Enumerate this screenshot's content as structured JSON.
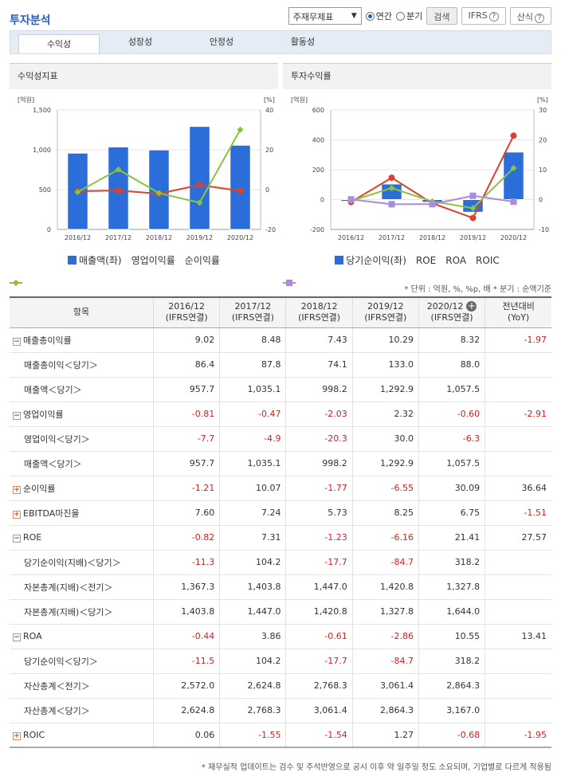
{
  "page": {
    "title": "투자분석"
  },
  "controls": {
    "select_value": "주재무제표",
    "annual": "연간",
    "quarter": "분기",
    "search": "검색",
    "ifrs": "IFRS",
    "formula": "산식"
  },
  "tabs": [
    "수익성",
    "성장성",
    "안정성",
    "활동성"
  ],
  "chart_data": [
    {
      "type": "bar",
      "title": "수익성지표",
      "categories": [
        "2016/12",
        "2017/12",
        "2018/12",
        "2019/12",
        "2020/12"
      ],
      "y_unit_left": "[억원]",
      "y_unit_right": "[%]",
      "ylim_left": [
        0,
        1500
      ],
      "yticks_left": [
        "1,500",
        "1,000",
        "500",
        "0"
      ],
      "ylim_right": [
        -20,
        40
      ],
      "yticks_right": [
        "40",
        "20",
        "0",
        "-20"
      ],
      "series": [
        {
          "name": "매출액(좌)",
          "kind": "bar",
          "axis": "left",
          "color": "#2c6ed9",
          "values": [
            957.7,
            1035.1,
            998.2,
            1292.9,
            1057.5
          ]
        },
        {
          "name": "영업이익률",
          "kind": "line",
          "axis": "right",
          "color": "#d8432b",
          "values": [
            -0.81,
            -0.47,
            -2.03,
            2.32,
            -0.6
          ]
        },
        {
          "name": "순이익률",
          "kind": "line",
          "axis": "right",
          "color": "#8ac43f",
          "values": [
            -1.21,
            10.07,
            -1.77,
            -6.55,
            30.09
          ]
        }
      ]
    },
    {
      "type": "bar",
      "title": "투자수익률",
      "categories": [
        "2016/12",
        "2017/12",
        "2018/12",
        "2019/12",
        "2020/12"
      ],
      "y_unit_left": "[억원]",
      "y_unit_right": "[%]",
      "ylim_left": [
        -200,
        600
      ],
      "yticks_left": [
        "600",
        "400",
        "200",
        "0",
        "-200"
      ],
      "ylim_right": [
        -10,
        30
      ],
      "yticks_right": [
        "30",
        "20",
        "10",
        "0",
        "-10"
      ],
      "series": [
        {
          "name": "당기순이익(좌)",
          "kind": "bar",
          "axis": "left",
          "color": "#2c6ed9",
          "values": [
            -11.3,
            104.2,
            -17.7,
            -84.7,
            318.2
          ]
        },
        {
          "name": "ROE",
          "kind": "line",
          "axis": "right",
          "color": "#d8432b",
          "values": [
            -0.82,
            7.31,
            -1.23,
            -6.16,
            21.41
          ]
        },
        {
          "name": "ROA",
          "kind": "line",
          "axis": "right",
          "color": "#8ac43f",
          "values": [
            -0.44,
            3.86,
            -0.61,
            -2.86,
            10.55
          ]
        },
        {
          "name": "ROIC",
          "kind": "line",
          "axis": "right",
          "color": "#a98be0",
          "values": [
            0.06,
            -1.55,
            -1.54,
            1.27,
            -0.68
          ]
        }
      ]
    }
  ],
  "unit_note": "* 단위 : 억원, %, %p, 배   * 분기 : 순액기준",
  "table": {
    "header": [
      "항목",
      "2016/12|(IFRS연결)",
      "2017/12|(IFRS연결)",
      "2018/12|(IFRS연결)",
      "2019/12|(IFRS연결)",
      "2020/12|(IFRS연결)",
      "전년대비|(YoY)"
    ],
    "rows": [
      {
        "label": "매출총이익률",
        "toggle": "minus",
        "values": [
          "9.02",
          "8.48",
          "7.43",
          "10.29",
          "8.32",
          "-1.97"
        ]
      },
      {
        "label": "매출총이익＜당기＞",
        "sub": true,
        "values": [
          "86.4",
          "87.8",
          "74.1",
          "133.0",
          "88.0",
          ""
        ]
      },
      {
        "label": "매출액＜당기＞",
        "sub": true,
        "values": [
          "957.7",
          "1,035.1",
          "998.2",
          "1,292.9",
          "1,057.5",
          ""
        ]
      },
      {
        "label": "영업이익률",
        "toggle": "minus",
        "values": [
          "-0.81",
          "-0.47",
          "-2.03",
          "2.32",
          "-0.60",
          "-2.91"
        ]
      },
      {
        "label": "영업이익＜당기＞",
        "sub": true,
        "values": [
          "-7.7",
          "-4.9",
          "-20.3",
          "30.0",
          "-6.3",
          ""
        ]
      },
      {
        "label": "매출액＜당기＞",
        "sub": true,
        "values": [
          "957.7",
          "1,035.1",
          "998.2",
          "1,292.9",
          "1,057.5",
          ""
        ]
      },
      {
        "label": "순이익률",
        "toggle": "plus",
        "values": [
          "-1.21",
          "10.07",
          "-1.77",
          "-6.55",
          "30.09",
          "36.64"
        ]
      },
      {
        "label": "EBITDA마진율",
        "toggle": "plus",
        "values": [
          "7.60",
          "7.24",
          "5.73",
          "8.25",
          "6.75",
          "-1.51"
        ]
      },
      {
        "label": "ROE",
        "toggle": "minus",
        "values": [
          "-0.82",
          "7.31",
          "-1.23",
          "-6.16",
          "21.41",
          "27.57"
        ]
      },
      {
        "label": "당기순이익(지배)＜당기＞",
        "sub": true,
        "values": [
          "-11.3",
          "104.2",
          "-17.7",
          "-84.7",
          "318.2",
          ""
        ]
      },
      {
        "label": "자본총계(지배)＜전기＞",
        "sub": true,
        "values": [
          "1,367.3",
          "1,403.8",
          "1,447.0",
          "1,420.8",
          "1,327.8",
          ""
        ]
      },
      {
        "label": "자본총계(지배)＜당기＞",
        "sub": true,
        "values": [
          "1,403.8",
          "1,447.0",
          "1,420.8",
          "1,327.8",
          "1,644.0",
          ""
        ]
      },
      {
        "label": "ROA",
        "toggle": "minus",
        "values": [
          "-0.44",
          "3.86",
          "-0.61",
          "-2.86",
          "10.55",
          "13.41"
        ]
      },
      {
        "label": "당기순이익＜당기＞",
        "sub": true,
        "values": [
          "-11.5",
          "104.2",
          "-17.7",
          "-84.7",
          "318.2",
          ""
        ]
      },
      {
        "label": "자산총계＜전기＞",
        "sub": true,
        "values": [
          "2,572.0",
          "2,624.8",
          "2,768.3",
          "3,061.4",
          "2,864.3",
          ""
        ]
      },
      {
        "label": "자산총계＜당기＞",
        "sub": true,
        "values": [
          "2,624.8",
          "2,768.3",
          "3,061.4",
          "2,864.3",
          "3,167.0",
          ""
        ]
      },
      {
        "label": "ROIC",
        "toggle": "plus",
        "values": [
          "0.06",
          "-1.55",
          "-1.54",
          "1.27",
          "-0.68",
          "-1.95"
        ]
      }
    ]
  },
  "footnote": "* 재무실적 업데이트는 검수 및 주석반영으로 공시 이후 약 일주일 정도 소요되며, 기업별로 다르게 적용됨"
}
